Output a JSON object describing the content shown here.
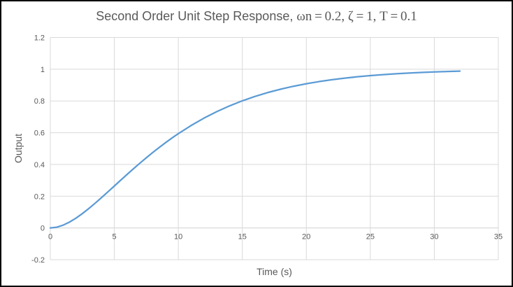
{
  "figure": {
    "title_sans": "Second Order Unit Step Response, ",
    "title_serif": "ωn = 0.2, ζ = 1, T = 0.1",
    "y_axis_title": "Output",
    "x_axis_title": "Time (s)",
    "colors": {
      "line": "#5B9BD5",
      "grid": "#D9D9D9",
      "axis_line": "#D9D9D9",
      "text": "#595959",
      "border": "#000000",
      "background": "#FFFFFF"
    }
  },
  "chart_data": {
    "type": "line",
    "title": "Second Order Unit Step Response, ωn = 0.2, ζ = 1, T = 0.1",
    "xlabel": "Time (s)",
    "ylabel": "Output",
    "xlim": [
      0,
      35
    ],
    "ylim": [
      -0.2,
      1.2
    ],
    "x_ticks": [
      0,
      5,
      10,
      15,
      20,
      25,
      30,
      35
    ],
    "y_ticks": [
      -0.2,
      0,
      0.2,
      0.4,
      0.6,
      0.8,
      1,
      1.2
    ],
    "grid": true,
    "legend": false,
    "line_color": "#5B9BD5",
    "series": [
      {
        "x": [
          0,
          0.5,
          1,
          1.5,
          2,
          2.5,
          3,
          3.5,
          4,
          4.5,
          5,
          5.5,
          6,
          6.5,
          7,
          7.5,
          8,
          8.5,
          9,
          9.5,
          10,
          11,
          12,
          13,
          14,
          15,
          16,
          17,
          18,
          19,
          20,
          21,
          22,
          23,
          24,
          25,
          26,
          27,
          28,
          29,
          30,
          31,
          32
        ],
        "y": [
          0,
          0.0047,
          0.0175,
          0.0369,
          0.0616,
          0.0902,
          0.1219,
          0.1558,
          0.1912,
          0.2275,
          0.2642,
          0.301,
          0.3374,
          0.3732,
          0.4082,
          0.4422,
          0.4751,
          0.5068,
          0.5372,
          0.5663,
          0.594,
          0.6454,
          0.6916,
          0.7326,
          0.7689,
          0.8009,
          0.8288,
          0.8532,
          0.8743,
          0.8926,
          0.9084,
          0.922,
          0.9337,
          0.9437,
          0.9523,
          0.9596,
          0.9658,
          0.9711,
          0.9756,
          0.9794,
          0.9826,
          0.9854,
          0.9877
        ]
      }
    ]
  }
}
